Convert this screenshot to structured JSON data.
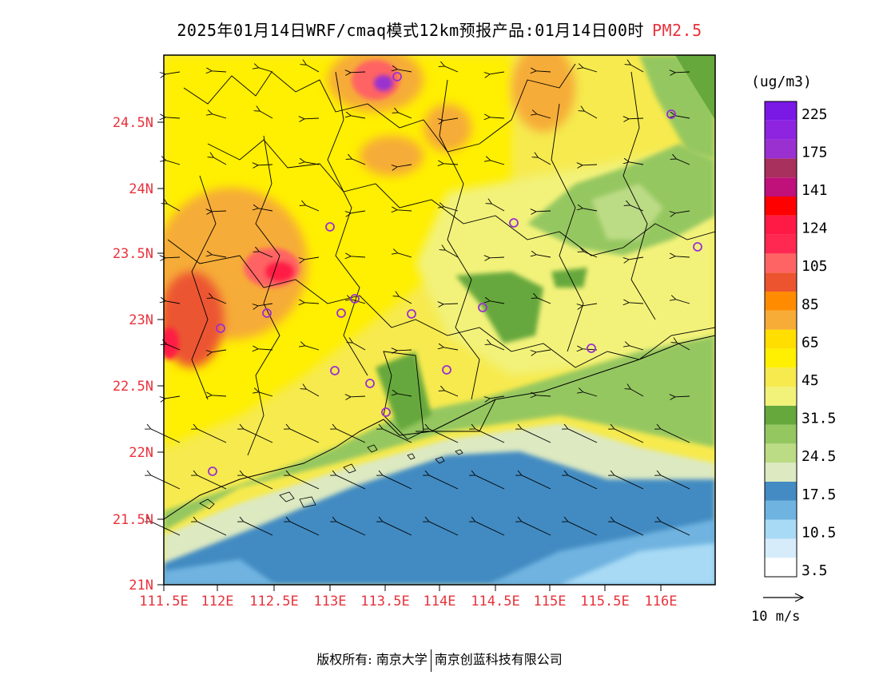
{
  "title": {
    "main": "2025年01月14日WRF/cmaq模式12km预报产品:01月14日00时",
    "pollutant": "PM2.5"
  },
  "unit_label": "(ug/m3)",
  "wind_reference_label": "10 m/s",
  "footer": {
    "left": "版权所有: 南京大学",
    "right": "南京创蓝科技有限公司"
  },
  "axes": {
    "lat_labels": [
      "21N",
      "21.5N",
      "22N",
      "22.5N",
      "23N",
      "23.5N",
      "24N",
      "24.5N"
    ],
    "lon_labels": [
      "111.5E",
      "112E",
      "112.5E",
      "113E",
      "113.5E",
      "114E",
      "114.5E",
      "115E",
      "115.5E",
      "116E"
    ],
    "label_color": "#e8323c"
  },
  "legend": {
    "bins_bottom_to_top": [
      {
        "color": "#ffffff",
        "label": "3.5"
      },
      {
        "color": "#d6ecfa",
        "label": ""
      },
      {
        "color": "#a8daf5",
        "label": "10.5"
      },
      {
        "color": "#6fb3e0",
        "label": ""
      },
      {
        "color": "#438bc2",
        "label": "17.5"
      },
      {
        "color": "#dde9c1",
        "label": ""
      },
      {
        "color": "#bcdb85",
        "label": "24.5"
      },
      {
        "color": "#95c761",
        "label": ""
      },
      {
        "color": "#66a83c",
        "label": "31.5"
      },
      {
        "color": "#f2f27a",
        "label": ""
      },
      {
        "color": "#f6ea4e",
        "label": "45"
      },
      {
        "color": "#ffef00",
        "label": ""
      },
      {
        "color": "#ffde00",
        "label": "65"
      },
      {
        "color": "#f6ac37",
        "label": ""
      },
      {
        "color": "#ff8c00",
        "label": "85"
      },
      {
        "color": "#ec5430",
        "label": ""
      },
      {
        "color": "#ff6464",
        "label": "105"
      },
      {
        "color": "#ff2850",
        "label": ""
      },
      {
        "color": "#ff1a45",
        "label": "124"
      },
      {
        "color": "#ff0000",
        "label": ""
      },
      {
        "color": "#c0107a",
        "label": "141"
      },
      {
        "color": "#a8305c",
        "label": ""
      },
      {
        "color": "#9a30d0",
        "label": "175"
      },
      {
        "color": "#8e24e0",
        "label": ""
      },
      {
        "color": "#7a18e6",
        "label": "225"
      }
    ]
  },
  "colors": {
    "sea_deep": "#438bc2",
    "sea_mid": "#6fb3e0",
    "sea_light": "#a8daf5",
    "coast_pale": "#dde9c1",
    "land_green": "#95c761",
    "land_darkgreen": "#66a83c",
    "land_yellow": "#ffef00",
    "land_paleyellow": "#f2f27a",
    "land_lightyellow": "#f6ea4e",
    "hotspot_orange": "#f6ac37",
    "hotspot_red": "#ff1a45"
  }
}
